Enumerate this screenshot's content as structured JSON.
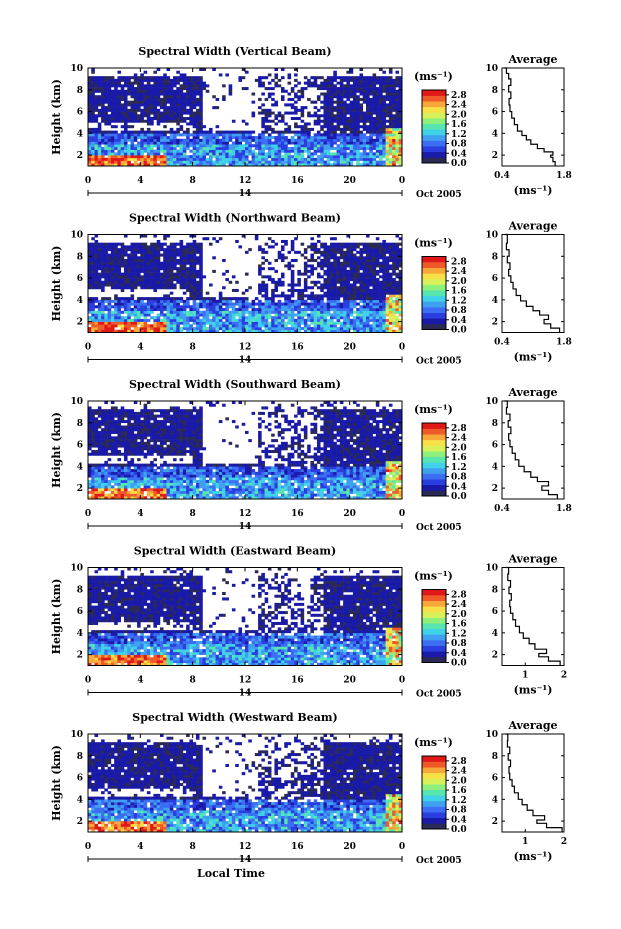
{
  "colors": {
    "scale": [
      "#2a2a55",
      "#1a1aa8",
      "#2a3ee0",
      "#3b6ef2",
      "#3fa0f0",
      "#3fd2e8",
      "#58e6b0",
      "#8ef07a",
      "#d8f05a",
      "#f8e048",
      "#f8a838",
      "#f05a28",
      "#e01818"
    ]
  },
  "chart_data": [
    {
      "type": "heatmap",
      "title": "Spectral Width (Vertical Beam)",
      "ylabel": "Height (km)",
      "xlabel": "",
      "xlim": [
        0,
        24
      ],
      "ylim": [
        1,
        10
      ],
      "x_ticks": [
        "0",
        "4",
        "8",
        "12",
        "16",
        "20",
        "0"
      ],
      "y_ticks": [
        "2",
        "4",
        "6",
        "8",
        "10"
      ],
      "date_marker": "14",
      "date_label": "Oct 2005",
      "colorbar": {
        "unit": "(ms⁻¹)",
        "ticks": [
          "0.0",
          "0.4",
          "0.8",
          "1.2",
          "1.6",
          "2.0",
          "2.4",
          "2.8"
        ],
        "range": [
          0,
          3.0
        ]
      },
      "profile": {
        "title": "Average",
        "xlabel": "(ms⁻¹)",
        "x_ticks": [
          "0.4",
          "1.8"
        ],
        "xlim": [
          0.4,
          1.8
        ],
        "y_ticks": [
          "2",
          "4",
          "6",
          "8",
          "10"
        ],
        "points": [
          [
            1.6,
            1.0
          ],
          [
            1.55,
            1.4
          ],
          [
            1.5,
            1.8
          ],
          [
            1.55,
            2.0
          ],
          [
            1.35,
            2.3
          ],
          [
            1.2,
            2.6
          ],
          [
            1.05,
            3.0
          ],
          [
            0.95,
            3.4
          ],
          [
            0.85,
            3.8
          ],
          [
            0.75,
            4.2
          ],
          [
            0.68,
            4.8
          ],
          [
            0.62,
            5.4
          ],
          [
            0.58,
            6.0
          ],
          [
            0.56,
            6.6
          ],
          [
            0.6,
            7.2
          ],
          [
            0.55,
            7.8
          ],
          [
            0.6,
            8.4
          ],
          [
            0.55,
            9.0
          ],
          [
            0.5,
            9.5
          ],
          [
            0.45,
            10
          ]
        ]
      }
    },
    {
      "type": "heatmap",
      "title": "Spectral Width (Northward Beam)",
      "ylabel": "Height (km)",
      "xlabel": "",
      "xlim": [
        0,
        24
      ],
      "ylim": [
        1,
        10
      ],
      "x_ticks": [
        "0",
        "4",
        "8",
        "12",
        "16",
        "20",
        "0"
      ],
      "y_ticks": [
        "2",
        "4",
        "6",
        "8",
        "10"
      ],
      "date_marker": "14",
      "date_label": "Oct 2005",
      "colorbar": {
        "unit": "(ms⁻¹)",
        "ticks": [
          "0.0",
          "0.4",
          "0.8",
          "1.2",
          "1.6",
          "2.0",
          "2.4",
          "2.8"
        ],
        "range": [
          0,
          3.0
        ]
      },
      "profile": {
        "title": "Average",
        "xlabel": "(ms⁻¹)",
        "x_ticks": [
          "0.4",
          "1.8"
        ],
        "xlim": [
          0.4,
          1.8
        ],
        "y_ticks": [
          "2",
          "4",
          "6",
          "8",
          "10"
        ],
        "points": [
          [
            1.7,
            1.0
          ],
          [
            1.5,
            1.4
          ],
          [
            1.35,
            1.8
          ],
          [
            1.45,
            2.2
          ],
          [
            1.25,
            2.6
          ],
          [
            1.1,
            3.0
          ],
          [
            0.95,
            3.4
          ],
          [
            0.82,
            3.9
          ],
          [
            0.72,
            4.4
          ],
          [
            0.65,
            5.0
          ],
          [
            0.6,
            5.6
          ],
          [
            0.55,
            6.2
          ],
          [
            0.58,
            6.8
          ],
          [
            0.52,
            7.4
          ],
          [
            0.56,
            8.0
          ],
          [
            0.5,
            8.6
          ],
          [
            0.52,
            9.2
          ],
          [
            0.45,
            10
          ]
        ]
      }
    },
    {
      "type": "heatmap",
      "title": "Spectral Width (Southward Beam)",
      "ylabel": "Height (km)",
      "xlabel": "",
      "xlim": [
        0,
        24
      ],
      "ylim": [
        1,
        10
      ],
      "x_ticks": [
        "0",
        "4",
        "8",
        "12",
        "16",
        "20",
        "0"
      ],
      "y_ticks": [
        "2",
        "4",
        "6",
        "8",
        "10"
      ],
      "date_marker": "14",
      "date_label": "Oct 2005",
      "colorbar": {
        "unit": "(ms⁻¹)",
        "ticks": [
          "0.0",
          "0.4",
          "0.8",
          "1.2",
          "1.6",
          "2.0",
          "2.4",
          "2.8"
        ],
        "range": [
          0,
          3.0
        ]
      },
      "profile": {
        "title": "Average",
        "xlabel": "",
        "x_ticks": [
          "0.4",
          "1.8"
        ],
        "xlim": [
          0.4,
          1.8
        ],
        "y_ticks": [
          "2",
          "4",
          "6",
          "8",
          "10"
        ],
        "points": [
          [
            1.65,
            1.0
          ],
          [
            1.45,
            1.4
          ],
          [
            1.3,
            1.8
          ],
          [
            1.45,
            2.2
          ],
          [
            1.2,
            2.6
          ],
          [
            1.05,
            3.0
          ],
          [
            0.9,
            3.5
          ],
          [
            0.78,
            4.0
          ],
          [
            0.7,
            4.6
          ],
          [
            0.63,
            5.2
          ],
          [
            0.58,
            5.8
          ],
          [
            0.55,
            6.4
          ],
          [
            0.6,
            7.0
          ],
          [
            0.54,
            7.6
          ],
          [
            0.58,
            8.2
          ],
          [
            0.5,
            8.8
          ],
          [
            0.52,
            9.4
          ],
          [
            0.45,
            10
          ]
        ]
      }
    },
    {
      "type": "heatmap",
      "title": "Spectral Width (Eastward Beam)",
      "ylabel": "Height (km)",
      "xlabel": "",
      "xlim": [
        0,
        24
      ],
      "ylim": [
        1,
        10
      ],
      "x_ticks": [
        "0",
        "4",
        "8",
        "12",
        "16",
        "20",
        "0"
      ],
      "y_ticks": [
        "2",
        "4",
        "6",
        "8",
        "10"
      ],
      "date_marker": "14",
      "date_label": "Oct 2005",
      "colorbar": {
        "unit": "(ms⁻¹)",
        "ticks": [
          "0.0",
          "0.4",
          "0.8",
          "1.2",
          "1.6",
          "2.0",
          "2.4",
          "2.8"
        ],
        "range": [
          0,
          3.0
        ]
      },
      "profile": {
        "title": "Average",
        "xlabel": "(ms⁻¹)",
        "x_ticks": [
          "1",
          "2"
        ],
        "xlim": [
          0.4,
          2.0
        ],
        "y_ticks": [
          "2",
          "4",
          "6",
          "8",
          "10"
        ],
        "points": [
          [
            1.9,
            1.0
          ],
          [
            1.6,
            1.4
          ],
          [
            1.35,
            1.8
          ],
          [
            1.55,
            2.1
          ],
          [
            1.25,
            2.5
          ],
          [
            1.1,
            3.0
          ],
          [
            0.95,
            3.5
          ],
          [
            0.85,
            4.0
          ],
          [
            0.75,
            4.6
          ],
          [
            0.68,
            5.2
          ],
          [
            0.62,
            5.8
          ],
          [
            0.6,
            6.4
          ],
          [
            0.64,
            7.0
          ],
          [
            0.58,
            7.6
          ],
          [
            0.62,
            8.2
          ],
          [
            0.55,
            8.8
          ],
          [
            0.57,
            9.4
          ],
          [
            0.5,
            10
          ]
        ]
      }
    },
    {
      "type": "heatmap",
      "title": "Spectral Width (Westward Beam)",
      "ylabel": "Height (km)",
      "xlabel": "Local Time",
      "xlim": [
        0,
        24
      ],
      "ylim": [
        1,
        10
      ],
      "x_ticks": [
        "0",
        "4",
        "8",
        "12",
        "16",
        "20",
        "0"
      ],
      "y_ticks": [
        "2",
        "4",
        "6",
        "8",
        "10"
      ],
      "date_marker": "14",
      "date_label": "Oct 2005",
      "colorbar": {
        "unit": "(ms⁻¹)",
        "ticks": [
          "0.0",
          "0.4",
          "0.8",
          "1.2",
          "1.6",
          "2.0",
          "2.4",
          "2.8"
        ],
        "range": [
          0,
          3.0
        ]
      },
      "profile": {
        "title": "Average",
        "xlabel": "(ms⁻¹)",
        "x_ticks": [
          "1",
          "2"
        ],
        "xlim": [
          0.4,
          2.0
        ],
        "y_ticks": [
          "2",
          "4",
          "6",
          "8",
          "10"
        ],
        "points": [
          [
            1.95,
            1.0
          ],
          [
            1.55,
            1.4
          ],
          [
            1.3,
            1.8
          ],
          [
            1.5,
            2.1
          ],
          [
            1.2,
            2.5
          ],
          [
            1.05,
            3.0
          ],
          [
            0.92,
            3.5
          ],
          [
            0.82,
            4.0
          ],
          [
            0.72,
            4.6
          ],
          [
            0.66,
            5.2
          ],
          [
            0.6,
            5.8
          ],
          [
            0.58,
            6.4
          ],
          [
            0.62,
            7.0
          ],
          [
            0.56,
            7.6
          ],
          [
            0.6,
            8.2
          ],
          [
            0.54,
            8.8
          ],
          [
            0.55,
            9.4
          ],
          [
            0.5,
            10
          ]
        ]
      }
    }
  ]
}
